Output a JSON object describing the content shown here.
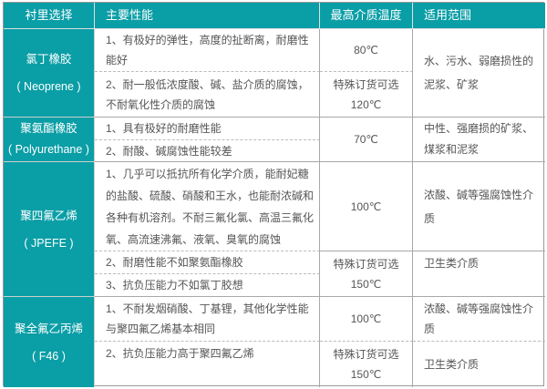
{
  "header": [
    "衬里选择",
    "主要性能",
    "最高介质温度",
    "适用范围"
  ],
  "rows": [
    {
      "name": "氯丁橡胶",
      "sub": "( Neoprene )",
      "props": [
        "1、有极好的弹性，高度的扯断离，耐磨性能好",
        "2、耐一般低浓度酸、碱、盐介质的腐蚀，不耐氧化性介质的腐蚀"
      ],
      "temps": [
        "80℃",
        "特殊订货可选",
        "120℃"
      ],
      "uses": [
        "水、污水、弱磨损性的泥浆、矿浆"
      ]
    },
    {
      "name": "聚氨酯橡胶",
      "sub": "( Polyurethane )",
      "props": [
        "1、具有极好的耐磨性能",
        "2、耐酸、碱腐蚀性能较差"
      ],
      "temps": [
        "70℃"
      ],
      "uses": [
        "中性、强磨损的矿浆、煤浆和泥浆"
      ]
    },
    {
      "name": "聚四氟乙烯",
      "sub": "( JPEFE )",
      "props": [
        "1、几乎可以抵抗所有化学介质，能耐妃糖的盐酸、硫酸、硝酸和王水，也能耐浓碱和各种有机溶剂。不耐三氟化氯、高温三氟化氧、高流速沸氟、液氧、臭氧的腐蚀",
        "2、耐磨性能不如聚氨酯橡胶",
        "3、抗负压能力不如氯丁胶想"
      ],
      "temps": [
        "100℃",
        "特殊订货可选",
        "150℃"
      ],
      "uses": [
        "浓酸、碱等强腐蚀性介质",
        "卫生类介质"
      ]
    },
    {
      "name": "聚全氟乙丙烯",
      "sub": "( F46 )",
      "props": [
        "1、不耐发烟硝酸、丁基锂，其他化学性能与聚四氟乙烯基本相同",
        "2、抗负压能力高于聚四氟乙烯"
      ],
      "temps": [
        "100℃",
        "特殊订货可选",
        "150℃"
      ],
      "uses": [
        "浓酸、碱等强腐蚀性介质",
        "卫生类介质"
      ]
    }
  ],
  "colors": {
    "header_bg": "#0a9ea6",
    "text": "#555555"
  }
}
